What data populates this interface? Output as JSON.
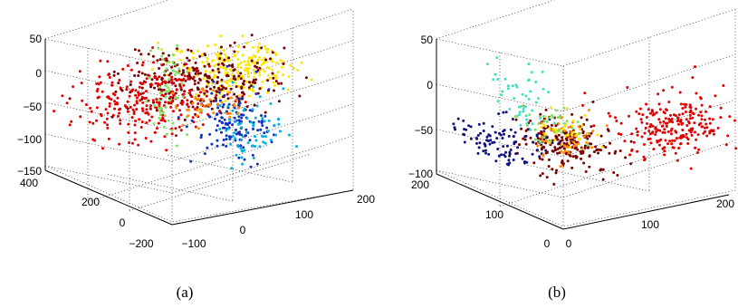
{
  "chart_data": [
    {
      "type": "scatter",
      "subtype": "3d-scatter",
      "caption": "(a)",
      "grid": true,
      "axes": {
        "x": {
          "ticks": [
            "−100",
            "0",
            "100",
            "200"
          ],
          "range": [
            -100,
            200
          ]
        },
        "y": {
          "ticks": [
            "−200",
            "0",
            "200",
            "400"
          ],
          "range": [
            -200,
            400
          ]
        },
        "z": {
          "ticks": [
            "−150",
            "−100",
            "−50",
            "0",
            "50"
          ],
          "range": [
            -150,
            50
          ]
        }
      },
      "colors": [
        "#ffe600",
        "#7a0000",
        "#e00000",
        "#1030c0",
        "#00b0e0",
        "#80e060",
        "#ff8c00"
      ],
      "clusters": [
        {
          "color": "#ffe600",
          "cx": 130,
          "cy": 150,
          "cz": 0,
          "sx": 45,
          "sy": 80,
          "sz": 18,
          "n": 230
        },
        {
          "color": "#7a0000",
          "cx": 80,
          "cy": 180,
          "cz": -15,
          "sx": 60,
          "sy": 90,
          "sz": 22,
          "n": 260
        },
        {
          "color": "#e00000",
          "cx": 20,
          "cy": 250,
          "cz": -45,
          "sx": 55,
          "sy": 80,
          "sz": 25,
          "n": 280
        },
        {
          "color": "#1030c0",
          "cx": 90,
          "cy": 50,
          "cz": -60,
          "sx": 25,
          "sy": 40,
          "sz": 25,
          "n": 130
        },
        {
          "color": "#00b0e0",
          "cx": 110,
          "cy": 10,
          "cz": -75,
          "sx": 25,
          "sy": 40,
          "sz": 25,
          "n": 70
        },
        {
          "color": "#80e060",
          "cx": 20,
          "cy": 160,
          "cz": -20,
          "sx": 15,
          "sy": 30,
          "sz": 40,
          "n": 60
        },
        {
          "color": "#ff8c00",
          "cx": 70,
          "cy": 120,
          "cz": -40,
          "sx": 25,
          "sy": 30,
          "sz": 15,
          "n": 40
        }
      ]
    },
    {
      "type": "scatter",
      "subtype": "3d-scatter",
      "caption": "(b)",
      "grid": true,
      "axes": {
        "x": {
          "ticks": [
            "0",
            "100",
            "200"
          ],
          "range": [
            0,
            200
          ]
        },
        "y": {
          "ticks": [
            "0",
            "100",
            "200"
          ],
          "range": [
            0,
            200
          ]
        },
        "z": {
          "ticks": [
            "−100",
            "−50",
            "0",
            "50"
          ],
          "range": [
            -100,
            50
          ]
        }
      },
      "colors": [
        "#e00000",
        "#7a0000",
        "#101080",
        "#ff8c00",
        "#40e0c0",
        "#ffe600",
        "#80e060"
      ],
      "clusters": [
        {
          "color": "#e00000",
          "cx": 160,
          "cy": 30,
          "cz": -25,
          "sx": 30,
          "sy": 25,
          "sz": 15,
          "n": 260
        },
        {
          "color": "#7a0000",
          "cx": 90,
          "cy": 110,
          "cz": -55,
          "sx": 20,
          "sy": 30,
          "sz": 12,
          "n": 220
        },
        {
          "color": "#101080",
          "cx": 40,
          "cy": 150,
          "cz": -55,
          "sx": 25,
          "sy": 30,
          "sz": 10,
          "n": 110
        },
        {
          "color": "#ff8c00",
          "cx": 80,
          "cy": 100,
          "cz": -45,
          "sx": 15,
          "sy": 20,
          "sz": 12,
          "n": 50
        },
        {
          "color": "#40e0c0",
          "cx": 60,
          "cy": 140,
          "cz": -10,
          "sx": 8,
          "sy": 20,
          "sz": 25,
          "n": 50
        },
        {
          "color": "#ffe600",
          "cx": 85,
          "cy": 110,
          "cz": -40,
          "sx": 12,
          "sy": 15,
          "sz": 12,
          "n": 40
        },
        {
          "color": "#80e060",
          "cx": 80,
          "cy": 120,
          "cz": -35,
          "sx": 12,
          "sy": 15,
          "sz": 10,
          "n": 30
        }
      ]
    }
  ]
}
